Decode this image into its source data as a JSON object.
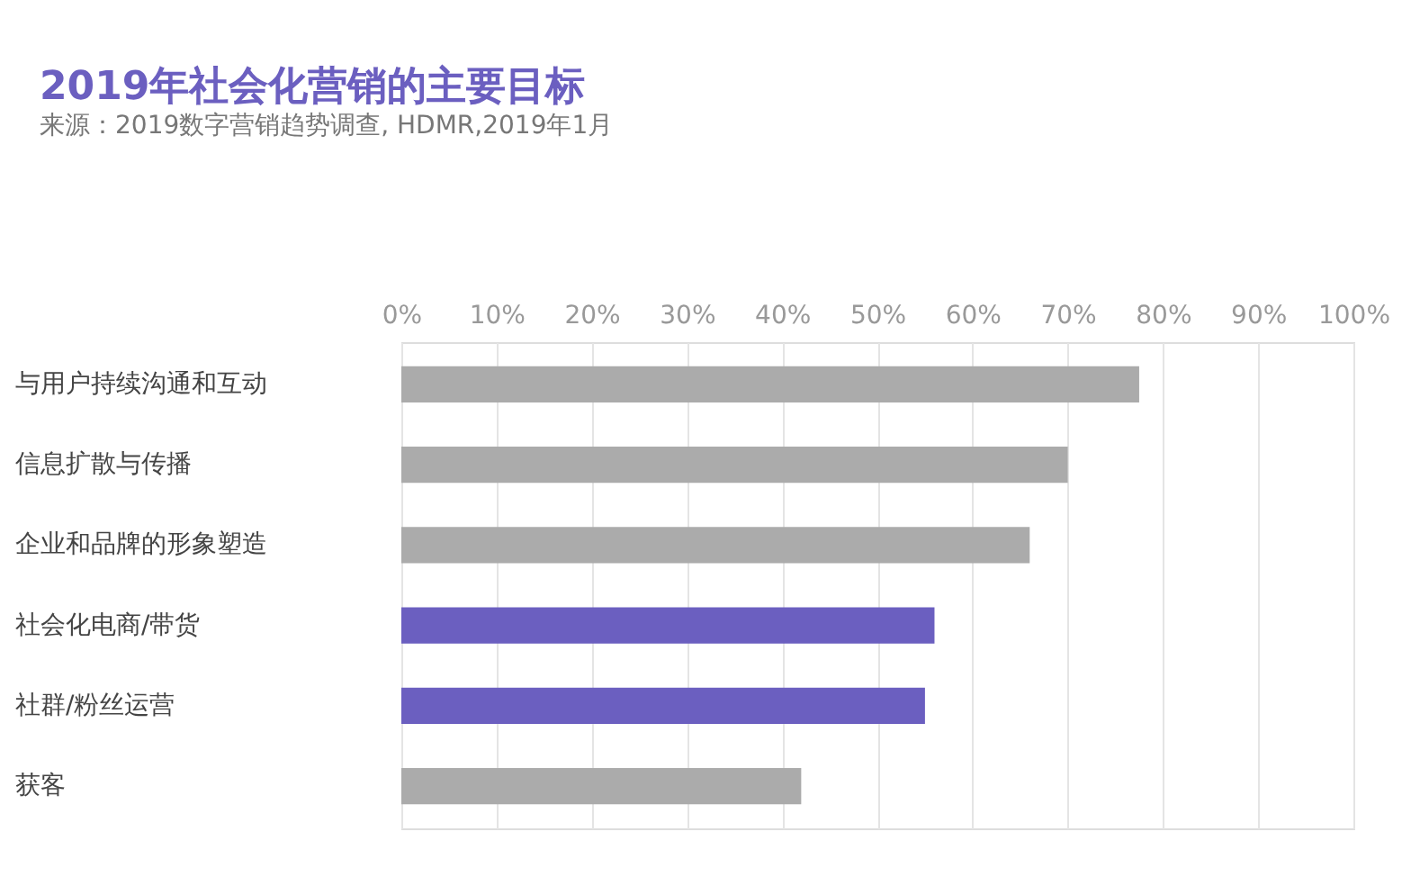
{
  "chart_data": {
    "type": "bar",
    "orientation": "horizontal",
    "title": "2019年社会化营销的主要目标",
    "annotations": [
      "来源：2019数字营销趋势调查, HDMR,2019年1月"
    ],
    "categories": [
      "与用户持续沟通和互动",
      "信息扩散与传播",
      "企业和品牌的形象塑造",
      "社会化电商/带货",
      "社群/粉丝运营",
      "获客"
    ],
    "values": [
      77.5,
      70,
      66,
      56,
      55,
      42
    ],
    "colors": [
      "#ababab",
      "#ababab",
      "#ababab",
      "#6b5fc0",
      "#6b5fc0",
      "#ababab"
    ],
    "xlim": [
      0,
      100
    ],
    "xticks": [
      {
        "value": 0,
        "label": "0%"
      },
      {
        "value": 10,
        "label": "10%"
      },
      {
        "value": 20,
        "label": "20%"
      },
      {
        "value": 30,
        "label": "30%"
      },
      {
        "value": 40,
        "label": "40%"
      },
      {
        "value": 50,
        "label": "50%"
      },
      {
        "value": 60,
        "label": "60%"
      },
      {
        "value": 70,
        "label": "70%"
      },
      {
        "value": 80,
        "label": "80%"
      },
      {
        "value": 90,
        "label": "90%"
      },
      {
        "value": 100,
        "label": "100%"
      }
    ],
    "grid": "x",
    "legend": false
  }
}
